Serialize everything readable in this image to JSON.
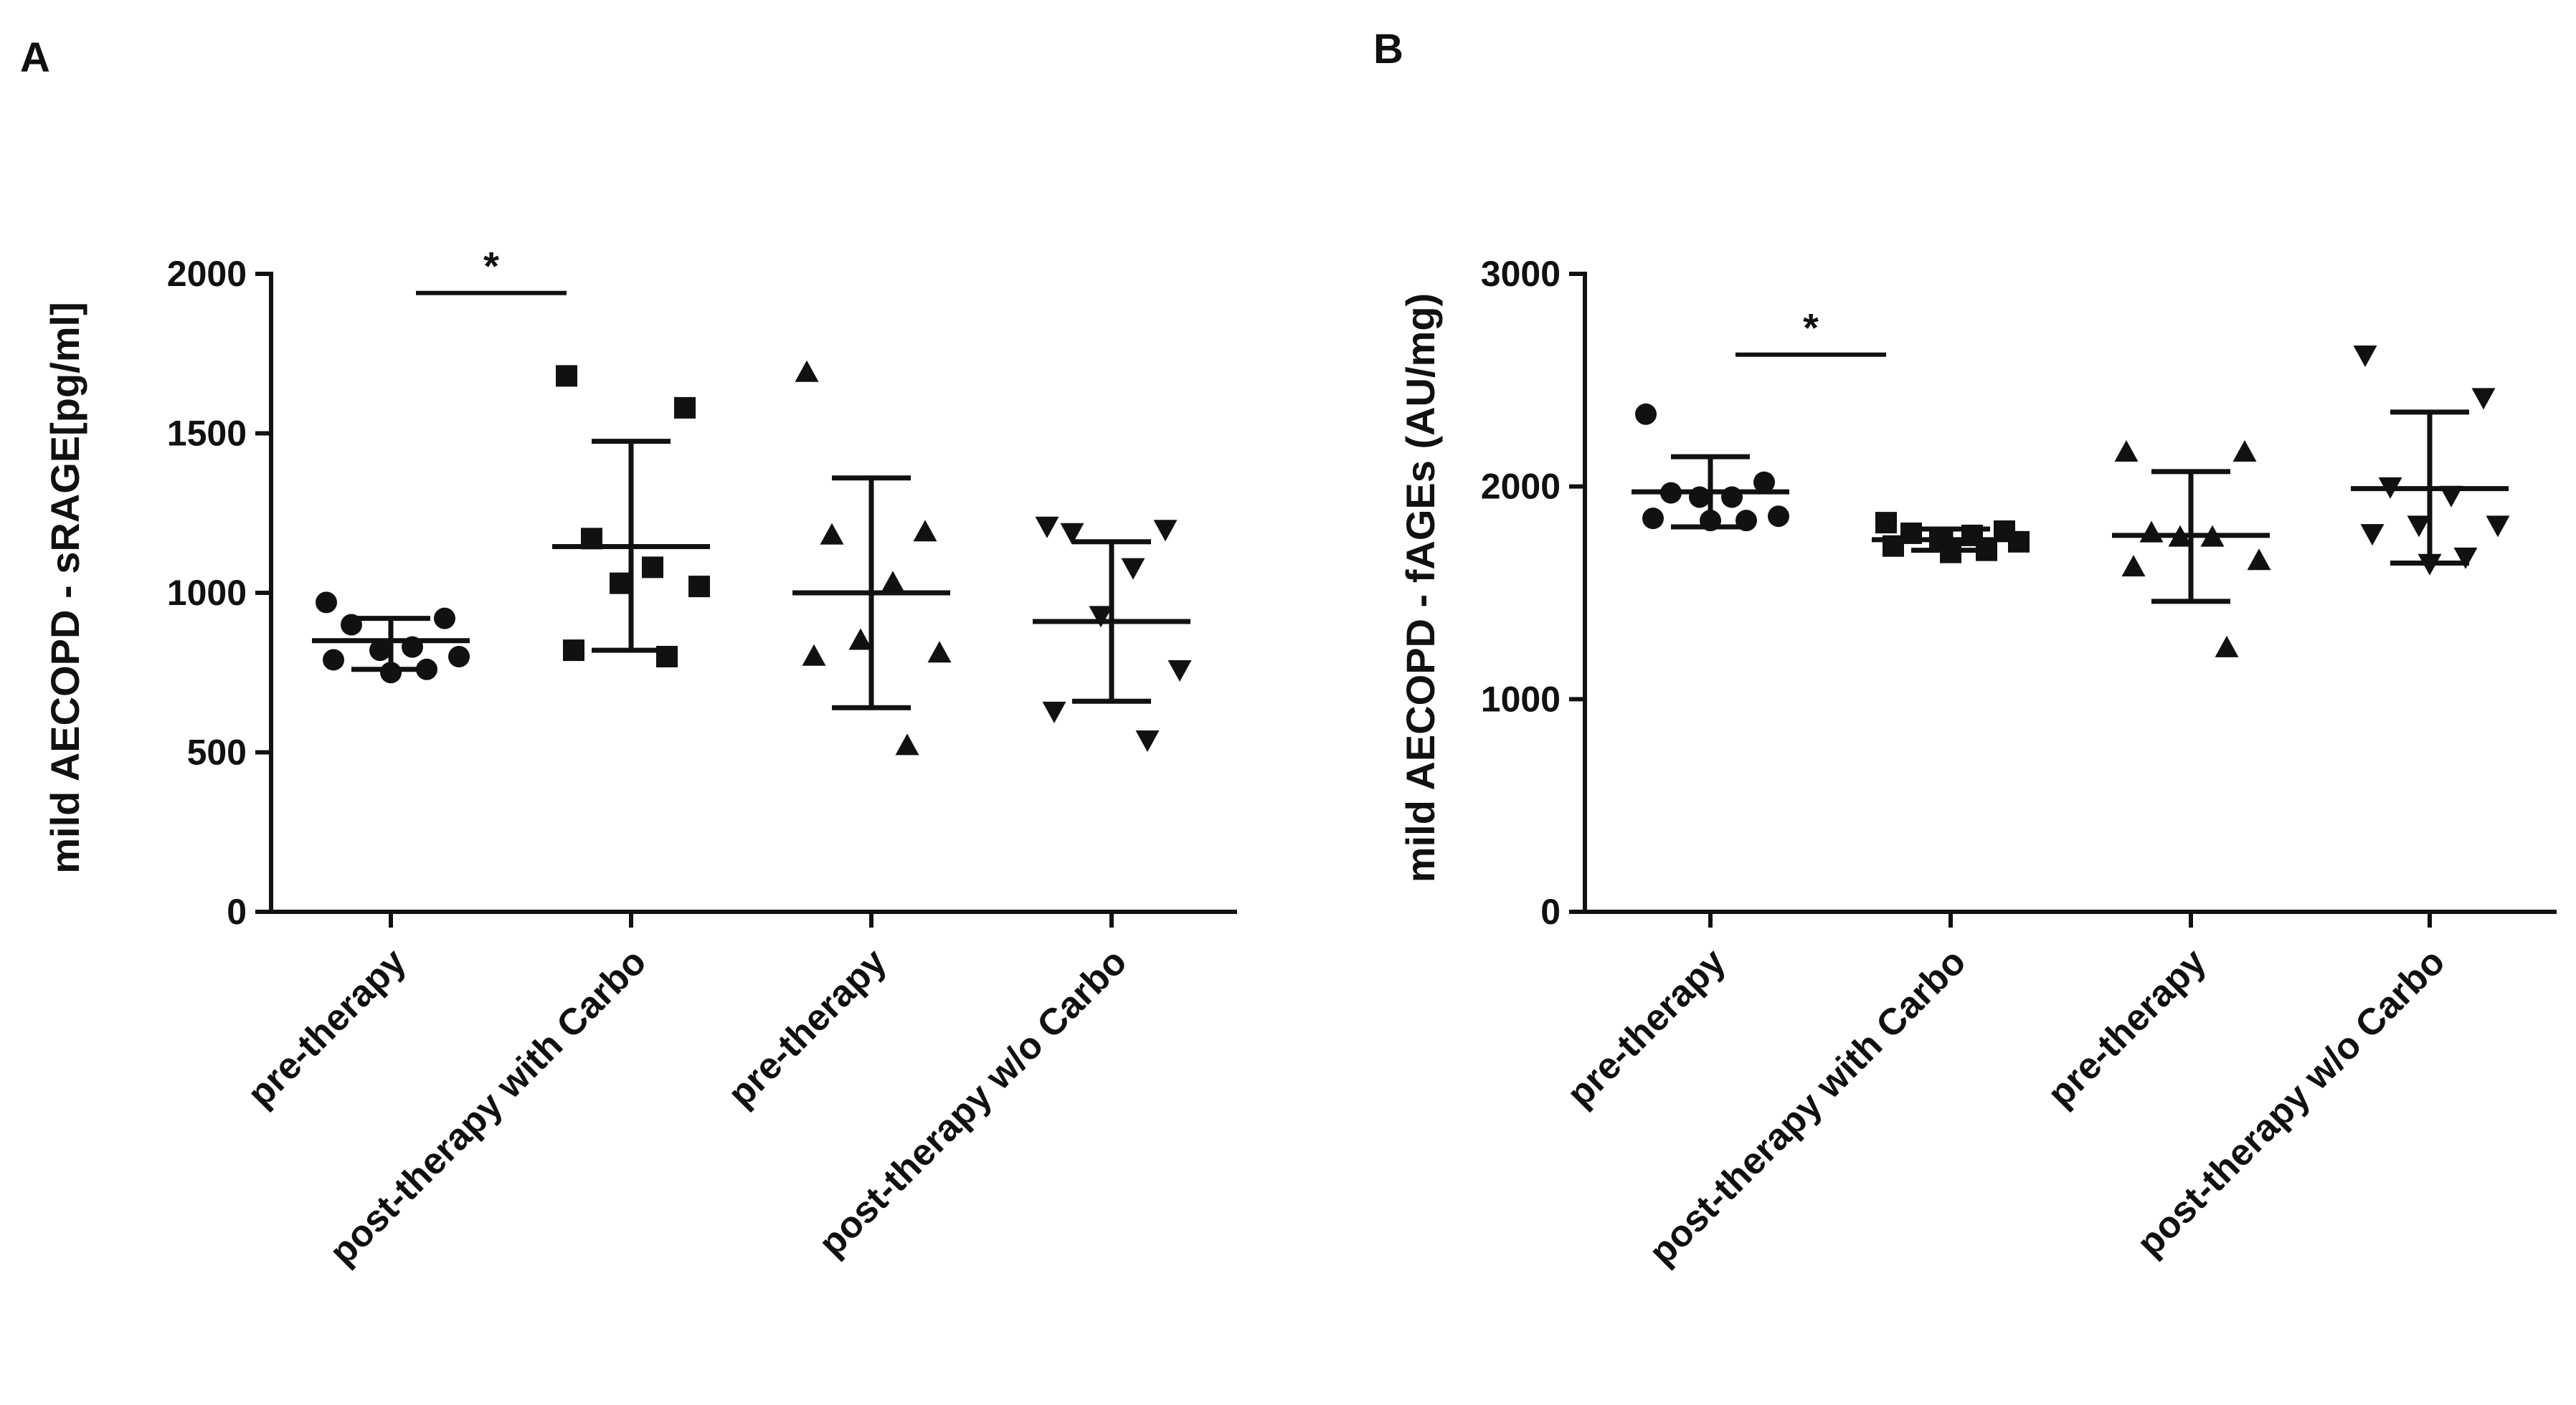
{
  "chart_data": [
    {
      "type": "scatter",
      "panel_label": "A",
      "ylabel": "mild AECOPD - sRAGE[pg/ml]",
      "ylim": [
        0,
        2000
      ],
      "yticks": [
        0,
        500,
        1000,
        1500,
        2000
      ],
      "categories": [
        "pre-therapy",
        "post-therapy with Carbo",
        "pre-therapy",
        "post-therapy w/o Carbo"
      ],
      "series": [
        {
          "name": "pre-therapy",
          "marker": "circle",
          "values": [
            970,
            920,
            900,
            830,
            820,
            800,
            790,
            760,
            750
          ],
          "mean": 850,
          "sd_low": 760,
          "sd_high": 920
        },
        {
          "name": "post-therapy with Carbo",
          "marker": "square",
          "values": [
            1680,
            1580,
            1170,
            1080,
            1030,
            1020,
            820,
            800
          ],
          "mean": 1145,
          "sd_low": 820,
          "sd_high": 1475
        },
        {
          "name": "pre-therapy",
          "marker": "triangle-up",
          "values": [
            1690,
            1190,
            1180,
            1030,
            850,
            810,
            800,
            520
          ],
          "mean": 1000,
          "sd_low": 640,
          "sd_high": 1360
        },
        {
          "name": "post-therapy w/o Carbo",
          "marker": "triangle-down",
          "values": [
            1210,
            1200,
            1190,
            1080,
            930,
            760,
            630,
            540
          ],
          "mean": 910,
          "sd_low": 660,
          "sd_high": 1160
        }
      ],
      "significance": {
        "from": 0,
        "to": 1,
        "y": 1940,
        "label": "*"
      }
    },
    {
      "type": "scatter",
      "panel_label": "B",
      "ylabel": "mild AECOPD - fAGEs (AU/mg)",
      "ylim": [
        0,
        3000
      ],
      "yticks": [
        0,
        1000,
        2000,
        3000
      ],
      "categories": [
        "pre-therapy",
        "post-therapy with Carbo",
        "pre-therapy",
        "post-therapy w/o Carbo"
      ],
      "series": [
        {
          "name": "pre-therapy",
          "marker": "circle",
          "values": [
            2340,
            2020,
            1970,
            1950,
            1950,
            1860,
            1850,
            1840,
            1840
          ],
          "mean": 1975,
          "sd_low": 1810,
          "sd_high": 2140
        },
        {
          "name": "post-therapy with Carbo",
          "marker": "square",
          "values": [
            1830,
            1790,
            1780,
            1770,
            1750,
            1740,
            1720,
            1700,
            1690
          ],
          "mean": 1750,
          "sd_low": 1700,
          "sd_high": 1800
        },
        {
          "name": "pre-therapy",
          "marker": "triangle-up",
          "values": [
            2160,
            2160,
            1780,
            1760,
            1760,
            1650,
            1620,
            1240
          ],
          "mean": 1770,
          "sd_low": 1460,
          "sd_high": 2070
        },
        {
          "name": "post-therapy w/o Carbo",
          "marker": "triangle-down",
          "values": [
            2620,
            2420,
            2000,
            1960,
            1820,
            1820,
            1780,
            1670,
            1640
          ],
          "mean": 1990,
          "sd_low": 1640,
          "sd_high": 2350
        }
      ],
      "significance": {
        "from": 0,
        "to": 1,
        "y": 2620,
        "label": "*"
      }
    }
  ]
}
